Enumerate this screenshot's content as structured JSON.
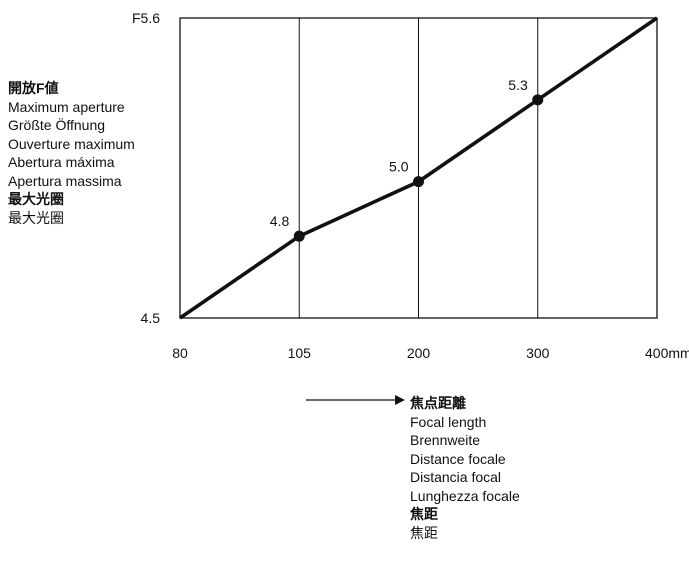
{
  "chart_data": {
    "type": "line",
    "x_scale": "categorical-ticks",
    "categories": [
      "80",
      "105",
      "200",
      "300",
      "400mm"
    ],
    "y_ticks": [
      "F5.6",
      "4.5"
    ],
    "ylim": [
      4.5,
      5.6
    ],
    "series": [
      {
        "x": [
          "80",
          "105",
          "200",
          "300",
          "400mm"
        ],
        "values": [
          4.5,
          4.8,
          5.0,
          5.3,
          5.6
        ]
      }
    ],
    "markers": [
      {
        "x": "105",
        "value": 4.8,
        "label": "4.8"
      },
      {
        "x": "200",
        "value": 5.0,
        "label": "5.0"
      },
      {
        "x": "300",
        "value": 5.3,
        "label": "5.3"
      }
    ],
    "grid": "vertical lines at tick positions"
  },
  "y_axis_legend": [
    {
      "text": "開放F値",
      "bold": true
    },
    {
      "text": "Maximum aperture",
      "bold": false
    },
    {
      "text": "Größte Öffnung",
      "bold": false
    },
    {
      "text": "Ouverture maximum",
      "bold": false
    },
    {
      "text": "Abertura máxima",
      "bold": false
    },
    {
      "text": "Apertura massima",
      "bold": false
    },
    {
      "text": "最大光圈",
      "bold": true
    },
    {
      "text": "最大光圈",
      "bold": false
    }
  ],
  "x_axis_legend": [
    {
      "text": "焦点距離",
      "bold": true
    },
    {
      "text": "Focal length",
      "bold": false
    },
    {
      "text": "Brennweite",
      "bold": false
    },
    {
      "text": "Distance focale",
      "bold": false
    },
    {
      "text": "Distancia focal",
      "bold": false
    },
    {
      "text": "Lunghezza focale",
      "bold": false
    },
    {
      "text": "焦距",
      "bold": true
    },
    {
      "text": "焦距",
      "bold": false
    }
  ]
}
